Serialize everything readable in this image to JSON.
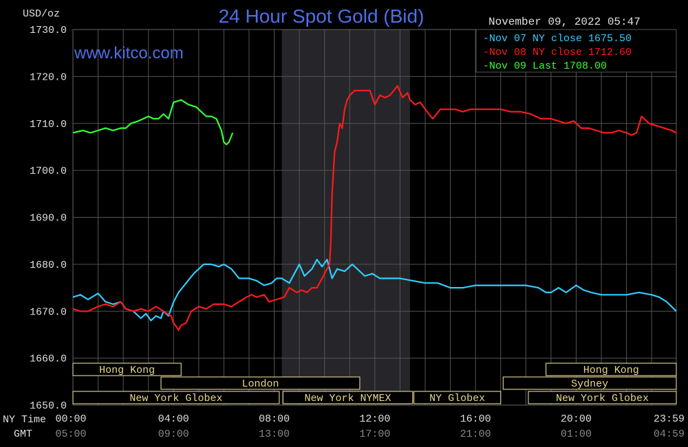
{
  "header": {
    "title": "24 Hour Spot Gold (Bid)",
    "units": "USD/oz",
    "timestamp": "November 09, 2022 05:47",
    "website": "www.kitco.com"
  },
  "legend": [
    {
      "text": "Nov 07 NY close 1675.50",
      "color": "#33ccff"
    },
    {
      "text": "Nov 08 NY close 1712.60",
      "color": "#ff1a1a"
    },
    {
      "text": "Nov 09 Last 1708.00",
      "color": "#33ff33"
    }
  ],
  "axis_rows": {
    "ny_label": "NY Time",
    "gmt_label": "GMT"
  },
  "sessions": [
    {
      "name": "Hong Kong",
      "row": 0,
      "start": 0.0,
      "end": 4.3
    },
    {
      "name": "Hong Kong",
      "row": 0,
      "start": 18.8,
      "end": 23.98
    },
    {
      "name": "London",
      "row": 1,
      "start": 3.5,
      "end": 11.4
    },
    {
      "name": "Sydney",
      "row": 1,
      "start": 17.1,
      "end": 23.98
    },
    {
      "name": "New York Globex",
      "row": 2,
      "start": 0.0,
      "end": 8.2
    },
    {
      "name": "New York NYMEX",
      "row": 2,
      "start": 8.35,
      "end": 13.5
    },
    {
      "name": "NY Globex",
      "row": 2,
      "start": 13.55,
      "end": 17.0
    },
    {
      "name": "New York Globex",
      "row": 2,
      "start": 18.1,
      "end": 23.98
    }
  ],
  "chart_data": {
    "type": "line",
    "xlim": [
      0,
      23.98
    ],
    "ylim": [
      1650,
      1730
    ],
    "yticks": [
      {
        "value": 1730,
        "label": "1730.0"
      },
      {
        "value": 1720,
        "label": "1720.0"
      },
      {
        "value": 1710,
        "label": "1710.0"
      },
      {
        "value": 1700,
        "label": "1700.0"
      },
      {
        "value": 1690,
        "label": "1690.0"
      },
      {
        "value": 1680,
        "label": "1680.0"
      },
      {
        "value": 1670,
        "label": "1670.0"
      },
      {
        "value": 1660,
        "label": "1660.0"
      },
      {
        "value": 1650,
        "label": "1650.0"
      }
    ],
    "xticks": [
      {
        "value": 0,
        "ny": "00:00",
        "gmt": "05:00"
      },
      {
        "value": 4,
        "ny": "04:00",
        "gmt": "09:00"
      },
      {
        "value": 8,
        "ny": "08:00",
        "gmt": "13:00"
      },
      {
        "value": 12,
        "ny": "12:00",
        "gmt": "17:00"
      },
      {
        "value": 16,
        "ny": "16:00",
        "gmt": "21:00"
      },
      {
        "value": 20,
        "ny": "20:00",
        "gmt": "01:00"
      },
      {
        "value": 23.98,
        "ny": "23:59",
        "gmt": "04:59"
      }
    ],
    "grid": true,
    "shaded_range": [
      8.3,
      13.4
    ],
    "series": [
      {
        "name": "Nov 07",
        "color": "#33ccff",
        "x": [
          0,
          0.3,
          0.6,
          1.0,
          1.3,
          1.6,
          1.9,
          2.1,
          2.4,
          2.7,
          2.9,
          3.1,
          3.3,
          3.5,
          3.6,
          3.8,
          4.0,
          4.2,
          4.5,
          4.8,
          5.0,
          5.2,
          5.5,
          5.8,
          6.0,
          6.3,
          6.6,
          7.0,
          7.3,
          7.6,
          7.9,
          8.1,
          8.3,
          8.6,
          8.9,
          9.0,
          9.2,
          9.5,
          9.7,
          9.9,
          10.1,
          10.3,
          10.5,
          10.8,
          11.1,
          11.3,
          11.6,
          11.9,
          12.2,
          12.5,
          13.0,
          13.5,
          14.0,
          14.5,
          15.0,
          15.5,
          16.0,
          16.5,
          17.0,
          17.5,
          18.0,
          18.5,
          18.8,
          19.0,
          19.3,
          19.6,
          20.0,
          20.3,
          20.6,
          21.0,
          21.5,
          22.0,
          22.5,
          23.0,
          23.3,
          23.6,
          23.98
        ],
        "y": [
          1673,
          1673.5,
          1672.5,
          1673.8,
          1672,
          1671.5,
          1672,
          1670.5,
          1670,
          1668.5,
          1669.5,
          1668,
          1669,
          1668.5,
          1670,
          1669,
          1672,
          1674,
          1676,
          1678,
          1679,
          1680,
          1680,
          1679.5,
          1680,
          1679,
          1677,
          1677,
          1676.5,
          1675.5,
          1676,
          1677,
          1677,
          1676,
          1679,
          1680,
          1677.5,
          1679,
          1681,
          1679.5,
          1681,
          1677,
          1679,
          1678.5,
          1680,
          1679,
          1677.5,
          1678,
          1677,
          1677,
          1677,
          1676.5,
          1676,
          1676,
          1675,
          1675,
          1675.5,
          1675.5,
          1675.5,
          1675.5,
          1675.5,
          1675,
          1674,
          1674,
          1675,
          1674,
          1675.5,
          1674.5,
          1674,
          1673.5,
          1673.5,
          1673.5,
          1674,
          1673.5,
          1673,
          1672,
          1670
        ]
      },
      {
        "name": "Nov 08",
        "color": "#ff1a1a",
        "x": [
          0,
          0.3,
          0.6,
          1.0,
          1.3,
          1.6,
          1.9,
          2.1,
          2.4,
          2.7,
          3.0,
          3.3,
          3.6,
          3.9,
          4.0,
          4.2,
          4.3,
          4.5,
          4.7,
          5.0,
          5.3,
          5.6,
          6.0,
          6.3,
          6.6,
          6.9,
          7.1,
          7.3,
          7.6,
          7.8,
          8.1,
          8.4,
          8.6,
          8.9,
          9.1,
          9.3,
          9.5,
          9.7,
          9.9,
          10.1,
          10.2,
          10.25,
          10.3,
          10.4,
          10.5,
          10.6,
          10.7,
          10.8,
          10.9,
          11.0,
          11.2,
          11.5,
          11.8,
          12.0,
          12.2,
          12.4,
          12.6,
          12.9,
          13.1,
          13.3,
          13.4,
          13.6,
          13.8,
          14.0,
          14.3,
          14.6,
          14.9,
          15.2,
          15.5,
          15.8,
          16.2,
          16.6,
          17.0,
          17.4,
          17.8,
          18.2,
          18.6,
          19.0,
          19.3,
          19.6,
          19.9,
          20.2,
          20.5,
          20.8,
          21.1,
          21.4,
          21.7,
          22.0,
          22.2,
          22.4,
          22.6,
          22.9,
          23.2,
          23.5,
          23.8,
          23.98
        ],
        "y": [
          1670.5,
          1670,
          1670,
          1671,
          1671.5,
          1671,
          1672,
          1670.5,
          1670,
          1670.5,
          1670,
          1671,
          1670,
          1669,
          1667.5,
          1666,
          1667,
          1667.5,
          1670,
          1671,
          1670.5,
          1671.5,
          1671.5,
          1671,
          1672,
          1673,
          1673.5,
          1673,
          1673.5,
          1672,
          1672.5,
          1673,
          1675,
          1674,
          1674.5,
          1674,
          1675,
          1675,
          1677,
          1679,
          1680,
          1685,
          1695,
          1704,
          1706,
          1710,
          1709,
          1713,
          1715,
          1716,
          1717,
          1717,
          1717,
          1714,
          1716,
          1715.5,
          1716,
          1718,
          1715.5,
          1716.5,
          1715,
          1714,
          1714.5,
          1713,
          1711,
          1713,
          1713,
          1713,
          1712.5,
          1713,
          1713,
          1713,
          1713,
          1712.5,
          1712.5,
          1712,
          1711,
          1711,
          1710.5,
          1710,
          1710.5,
          1709,
          1709,
          1708.5,
          1708,
          1708,
          1708.5,
          1708,
          1707.5,
          1708,
          1711.5,
          1710,
          1709.5,
          1709,
          1708.5,
          1708
        ]
      },
      {
        "name": "Nov 09",
        "color": "#33ff33",
        "x": [
          0,
          0.4,
          0.7,
          1.0,
          1.3,
          1.6,
          1.9,
          2.1,
          2.3,
          2.6,
          2.8,
          3.0,
          3.2,
          3.4,
          3.6,
          3.8,
          4.0,
          4.3,
          4.6,
          4.9,
          5.1,
          5.3,
          5.5,
          5.7,
          5.9,
          6.0,
          6.1,
          6.2,
          6.35
        ],
        "y": [
          1708,
          1708.5,
          1708,
          1708.5,
          1709,
          1708.5,
          1709,
          1709,
          1710,
          1710.5,
          1711,
          1711.5,
          1711,
          1711,
          1712,
          1711,
          1714.5,
          1715,
          1714,
          1713.5,
          1712.5,
          1711.5,
          1711.5,
          1711,
          1708.5,
          1706,
          1705.5,
          1706,
          1708
        ]
      }
    ]
  }
}
